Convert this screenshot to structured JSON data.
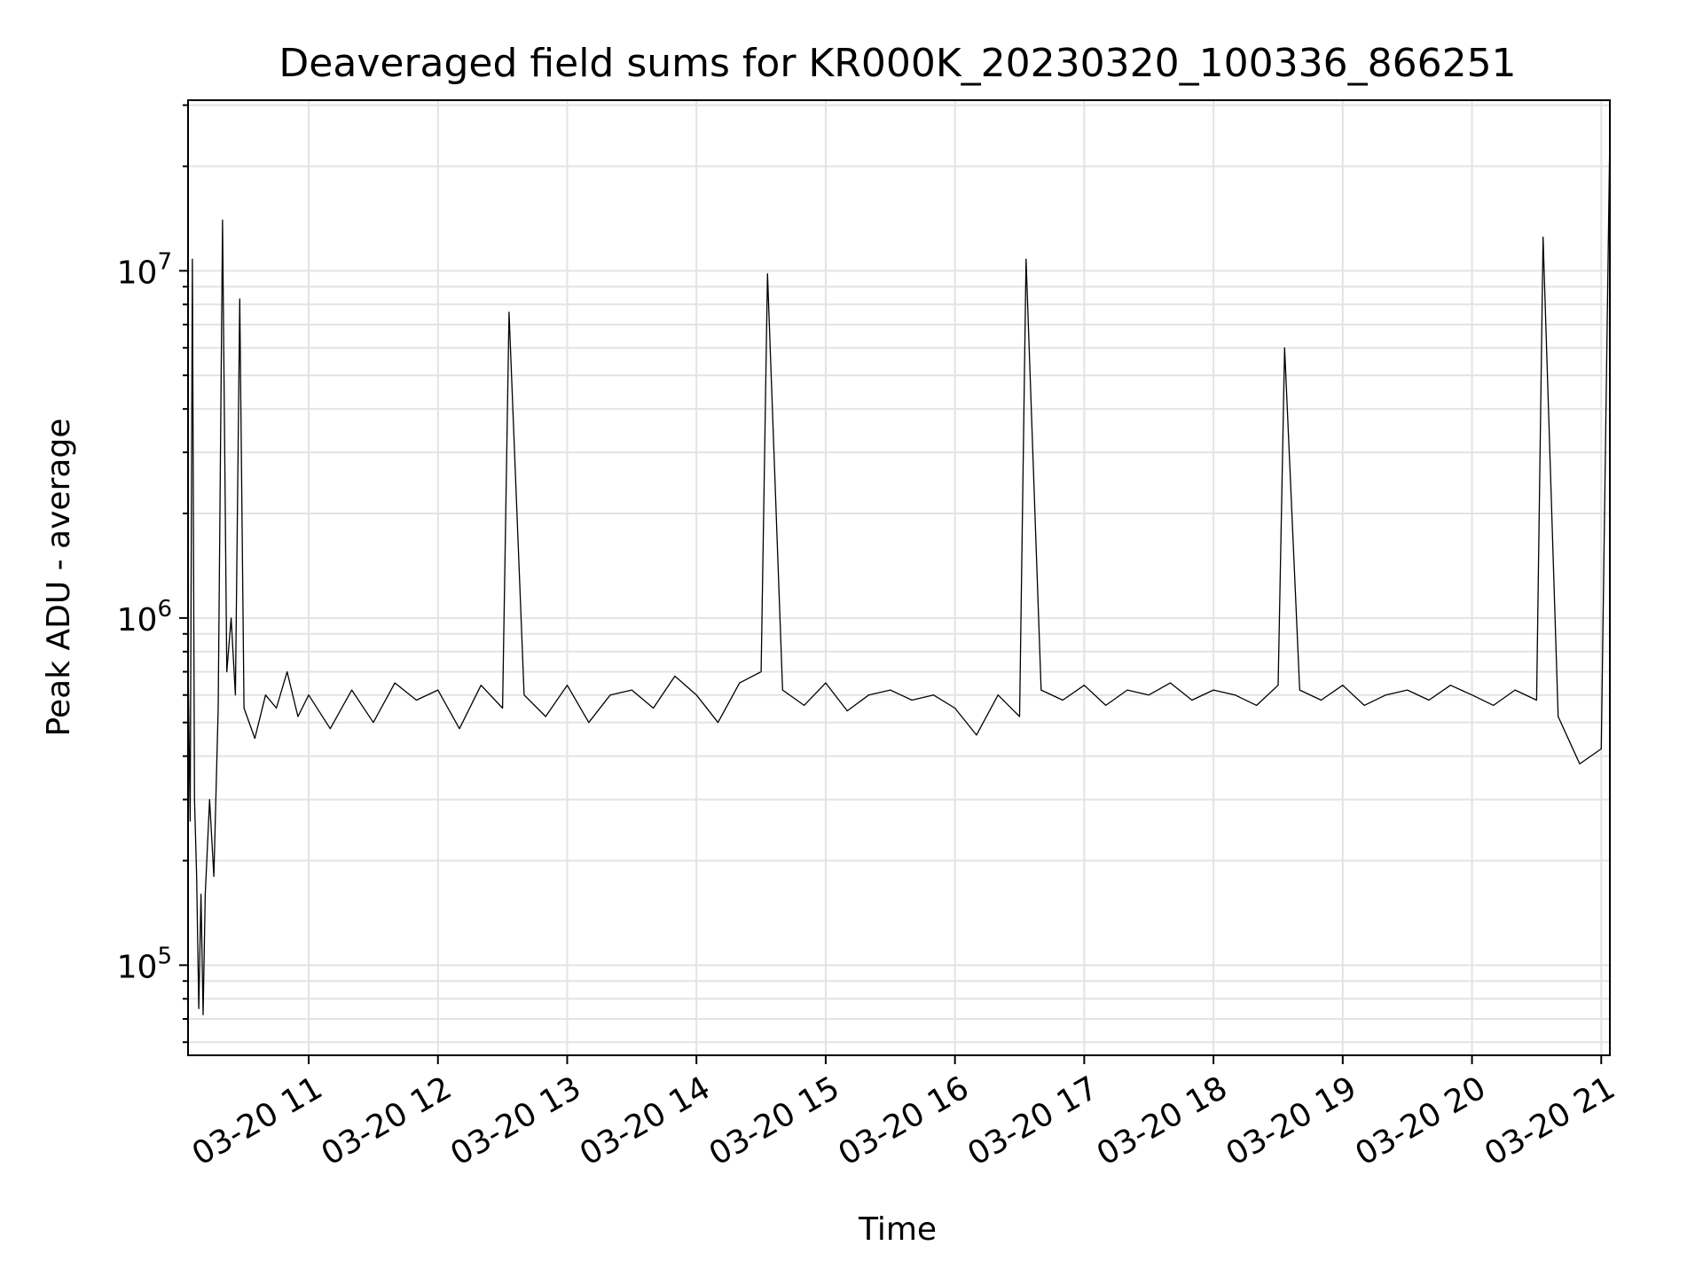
{
  "chart_data": {
    "type": "line",
    "title": "Deaveraged field sums for KR000K_20230320_100336_866251",
    "xlabel": "Time",
    "ylabel": "Peak ADU - average",
    "yscale": "log",
    "ylim": [
      55000,
      31000000
    ],
    "xlim": [
      "2023-03-20 10:04",
      "2023-03-20 21:04"
    ],
    "x_ticks": [
      "03-20 11",
      "03-20 12",
      "03-20 13",
      "03-20 14",
      "03-20 15",
      "03-20 16",
      "03-20 17",
      "03-20 18",
      "03-20 19",
      "03-20 20",
      "03-20 21"
    ],
    "y_ticks": [
      {
        "base": "10",
        "exp": "5",
        "value": 100000
      },
      {
        "base": "10",
        "exp": "6",
        "value": 1000000
      },
      {
        "base": "10",
        "exp": "7",
        "value": 10000000
      }
    ],
    "grid": true,
    "line_color": "#000000",
    "series": [
      {
        "time": [
          "10:04",
          "10:05",
          "10:06",
          "10:07",
          "10:08",
          "10:09",
          "10:10",
          "10:11",
          "10:12",
          "10:14",
          "10:16",
          "10:18",
          "10:20",
          "10:22",
          "10:24",
          "10:26",
          "10:28",
          "10:30",
          "10:35",
          "10:40",
          "10:45",
          "10:50",
          "10:55",
          "11:00",
          "11:10",
          "11:20",
          "11:30",
          "11:40",
          "11:50",
          "12:00",
          "12:10",
          "12:20",
          "12:30",
          "12:33",
          "12:40",
          "12:50",
          "13:00",
          "13:10",
          "13:20",
          "13:30",
          "13:40",
          "13:50",
          "14:00",
          "14:10",
          "14:20",
          "14:30",
          "14:33",
          "14:40",
          "14:50",
          "15:00",
          "15:10",
          "15:20",
          "15:30",
          "15:40",
          "15:50",
          "16:00",
          "16:10",
          "16:20",
          "16:30",
          "16:33",
          "16:40",
          "16:50",
          "17:00",
          "17:10",
          "17:20",
          "17:30",
          "17:40",
          "17:50",
          "18:00",
          "18:10",
          "18:20",
          "18:30",
          "18:33",
          "18:40",
          "18:50",
          "19:00",
          "19:10",
          "19:20",
          "19:30",
          "19:40",
          "19:50",
          "20:00",
          "20:10",
          "20:20",
          "20:30",
          "20:33",
          "20:40",
          "20:50",
          "21:00",
          "21:04"
        ],
        "value": [
          750000,
          260000,
          10800000,
          300000,
          180000,
          75000,
          160000,
          72000,
          160000,
          300000,
          180000,
          550000,
          14000000,
          700000,
          1000000,
          600000,
          8300000,
          550000,
          450000,
          600000,
          550000,
          700000,
          520000,
          600000,
          480000,
          620000,
          500000,
          650000,
          580000,
          620000,
          480000,
          640000,
          550000,
          7600000,
          600000,
          520000,
          640000,
          500000,
          600000,
          620000,
          550000,
          680000,
          600000,
          500000,
          650000,
          700000,
          9800000,
          620000,
          560000,
          650000,
          540000,
          600000,
          620000,
          580000,
          600000,
          550000,
          460000,
          600000,
          520000,
          10800000,
          620000,
          580000,
          640000,
          560000,
          620000,
          600000,
          650000,
          580000,
          620000,
          600000,
          560000,
          640000,
          6000000,
          620000,
          580000,
          640000,
          560000,
          600000,
          620000,
          580000,
          640000,
          600000,
          560000,
          620000,
          580000,
          12500000,
          520000,
          380000,
          420000,
          25000000
        ]
      }
    ]
  }
}
